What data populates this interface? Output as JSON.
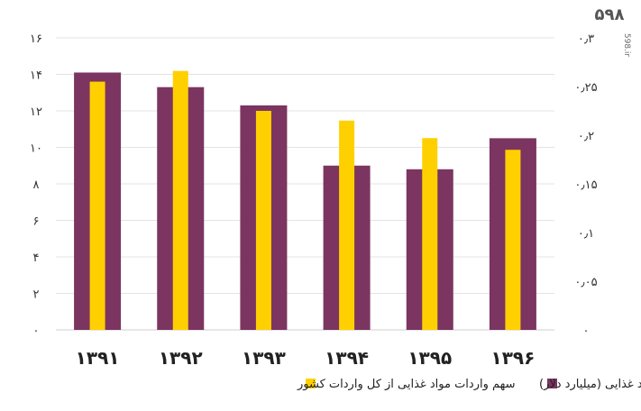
{
  "logo": {
    "mark": "۵۹۸",
    "site": "598.ir"
  },
  "chart_data": {
    "type": "bar",
    "categories": [
      "۱۳۹۱",
      "۱۳۹۲",
      "۱۳۹۳",
      "۱۳۹۴",
      "۱۳۹۵",
      "۱۳۹۶"
    ],
    "series": [
      {
        "name": "ارزش واردات مواد غذایی (میلیارد دلار)",
        "axis": "left",
        "color": "#7B3560",
        "values": [
          14.1,
          13.3,
          12.3,
          9.0,
          8.8,
          10.5
        ]
      },
      {
        "name": "سهم واردات مواد غذایی از کل واردات کشور",
        "axis": "right",
        "color": "#FFD000",
        "values": [
          0.255,
          0.266,
          0.225,
          0.215,
          0.197,
          0.185
        ]
      }
    ],
    "left_axis": {
      "ticks": [
        "۰",
        "۲",
        "۴",
        "۶",
        "۸",
        "۱۰",
        "۱۲",
        "۱۴",
        "۱۶"
      ],
      "range": [
        0,
        16
      ]
    },
    "right_axis": {
      "ticks": [
        "۰",
        "۰٫۰۵",
        "۰٫۱",
        "۰٫۱۵",
        "۰٫۲",
        "۰٫۲۵",
        "۰٫۳"
      ],
      "range": [
        0,
        0.3
      ]
    },
    "grid": true,
    "legend_position": "bottom"
  }
}
